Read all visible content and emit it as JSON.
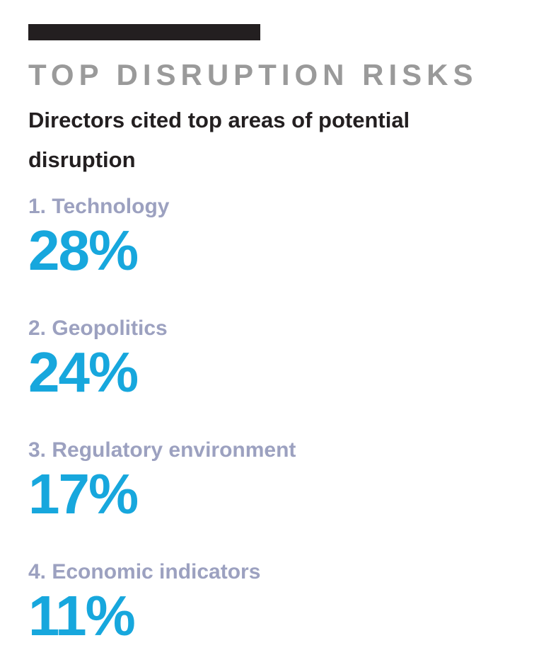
{
  "header": {
    "title": "TOP DISRUPTION RISKS",
    "subtitle": "Directors cited top areas of potential disruption"
  },
  "items": [
    {
      "label": "1. Technology",
      "value": "28%"
    },
    {
      "label": "2. Geopolitics",
      "value": "24%"
    },
    {
      "label": "3. Regulatory environment",
      "value": "17%"
    },
    {
      "label": "4. Economic indicators",
      "value": "11%"
    }
  ],
  "colors": {
    "page_bg": "#ffffff",
    "bar": "#231f20",
    "title": "#9a9a9a",
    "text": "#231f20",
    "label": "#9ca1c0",
    "accent": "#17a7dd"
  },
  "chart_data": {
    "type": "table",
    "title": "TOP DISRUPTION RISKS",
    "subtitle": "Directors cited top areas of potential disruption",
    "categories": [
      "Technology",
      "Geopolitics",
      "Regulatory environment",
      "Economic indicators"
    ],
    "values": [
      28,
      24,
      17,
      11
    ],
    "unit": "%",
    "ranks": [
      1,
      2,
      3,
      4
    ],
    "layout": "ranked list, labels above large percentage figures, no axes, no gridlines"
  }
}
